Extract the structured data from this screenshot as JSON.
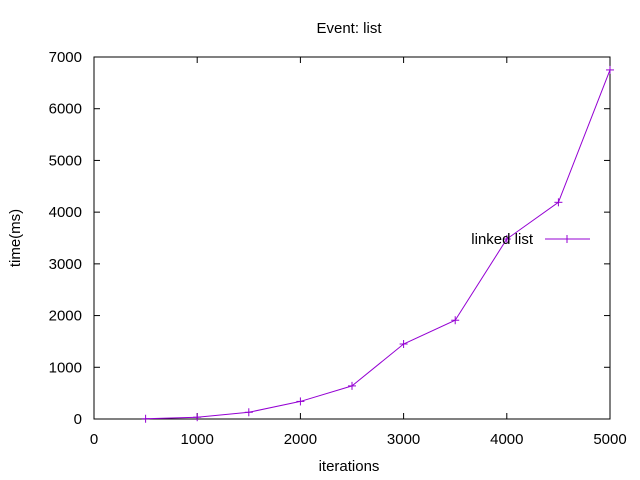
{
  "chart_data": {
    "type": "line",
    "title": "Event: list",
    "xlabel": "iterations",
    "ylabel": "time(ms)",
    "xlim": [
      0,
      5000
    ],
    "ylim": [
      0,
      7000
    ],
    "xticks": [
      0,
      1000,
      2000,
      3000,
      4000,
      5000
    ],
    "yticks": [
      0,
      1000,
      2000,
      3000,
      4000,
      5000,
      6000,
      7000
    ],
    "grid": false,
    "legend_position": "right",
    "series": [
      {
        "name": "linked list",
        "color": "#9400d3",
        "marker": "plus",
        "x": [
          500,
          1000,
          1500,
          2000,
          2500,
          3000,
          3500,
          4000,
          4500,
          5000
        ],
        "y": [
          5,
          35,
          130,
          340,
          640,
          1450,
          1910,
          3480,
          4190,
          6750
        ]
      }
    ]
  }
}
